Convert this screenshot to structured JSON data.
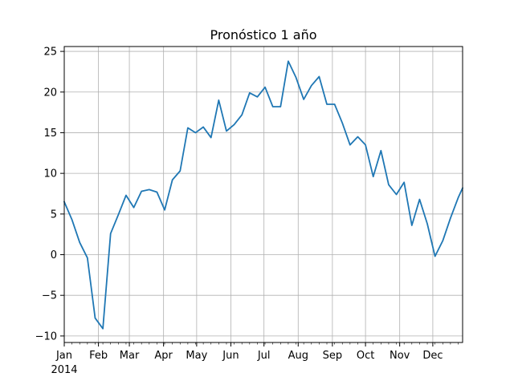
{
  "chart_data": {
    "type": "line",
    "title": "Pronóstico 1 año",
    "xlabel": "",
    "ylabel": "",
    "year_label": "2014",
    "x_ticks": [
      {
        "label": "Jan",
        "date": "2014-01-01"
      },
      {
        "label": "Feb",
        "date": "2014-02-01"
      },
      {
        "label": "Mar",
        "date": "2014-03-01"
      },
      {
        "label": "Apr",
        "date": "2014-04-01"
      },
      {
        "label": "May",
        "date": "2014-05-01"
      },
      {
        "label": "Jun",
        "date": "2014-06-01"
      },
      {
        "label": "Jul",
        "date": "2014-07-01"
      },
      {
        "label": "Aug",
        "date": "2014-08-01"
      },
      {
        "label": "Sep",
        "date": "2014-09-01"
      },
      {
        "label": "Oct",
        "date": "2014-10-01"
      },
      {
        "label": "Nov",
        "date": "2014-11-01"
      },
      {
        "label": "Dec",
        "date": "2014-12-01"
      }
    ],
    "y_ticks": [
      -10,
      -5,
      0,
      5,
      10,
      15,
      20,
      25
    ],
    "y_tick_labels": [
      "−10",
      "−5",
      "0",
      "5",
      "10",
      "15",
      "20",
      "25"
    ],
    "xlim": [
      "2014-01-01",
      "2014-12-28"
    ],
    "ylim": [
      -10.8,
      25.6
    ],
    "grid": true,
    "line_color": "#1f77b4",
    "series": [
      {
        "x": [
          "2014-01-01",
          "2014-01-08",
          "2014-01-15",
          "2014-01-22",
          "2014-01-29",
          "2014-02-05",
          "2014-02-12",
          "2014-02-19",
          "2014-02-26",
          "2014-03-05",
          "2014-03-12",
          "2014-03-19",
          "2014-03-26",
          "2014-04-02",
          "2014-04-09",
          "2014-04-16",
          "2014-04-23",
          "2014-04-30",
          "2014-05-07",
          "2014-05-14",
          "2014-05-21",
          "2014-05-28",
          "2014-06-04",
          "2014-06-11",
          "2014-06-18",
          "2014-06-25",
          "2014-07-02",
          "2014-07-09",
          "2014-07-16",
          "2014-07-23",
          "2014-07-30",
          "2014-08-06",
          "2014-08-13",
          "2014-08-20",
          "2014-08-27",
          "2014-09-03",
          "2014-09-10",
          "2014-09-17",
          "2014-09-24",
          "2014-10-01",
          "2014-10-08",
          "2014-10-15",
          "2014-10-22",
          "2014-10-29",
          "2014-11-05",
          "2014-11-12",
          "2014-11-19",
          "2014-11-26",
          "2014-12-03",
          "2014-12-10",
          "2014-12-17",
          "2014-12-24",
          "2014-12-28"
        ],
        "y": [
          6.5,
          4.3,
          1.5,
          -0.4,
          -7.8,
          -9.1,
          2.6,
          4.9,
          7.3,
          5.8,
          7.8,
          8.0,
          7.7,
          5.5,
          9.2,
          10.3,
          15.6,
          15.0,
          15.7,
          14.4,
          19.0,
          15.2,
          16.0,
          17.2,
          19.9,
          19.4,
          20.6,
          18.2,
          18.2,
          23.8,
          21.8,
          19.1,
          20.8,
          21.9,
          18.5,
          18.5,
          16.2,
          13.5,
          14.5,
          13.5,
          9.6,
          12.8,
          8.6,
          7.4,
          8.9,
          3.6,
          6.8,
          3.8,
          -0.2,
          1.7,
          4.5,
          7.0,
          8.2
        ]
      }
    ]
  }
}
